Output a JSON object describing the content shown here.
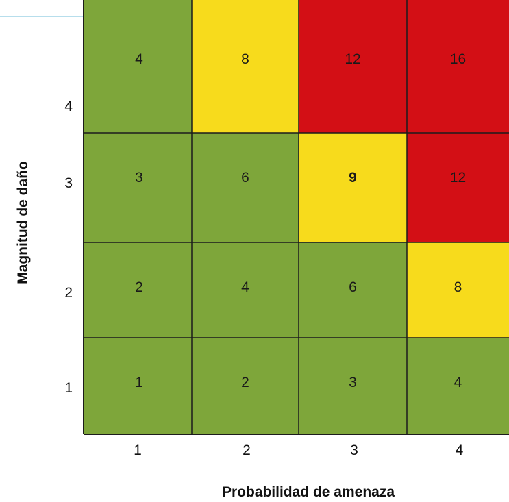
{
  "chart_data": {
    "type": "heatmap",
    "xlabel": "Probabilidad de amenaza",
    "ylabel": "Magnitud de daño",
    "x_categories": [
      "1",
      "2",
      "3",
      "4"
    ],
    "y_categories": [
      "1",
      "2",
      "3",
      "4"
    ],
    "rows": [
      {
        "y": "4",
        "values": [
          4,
          8,
          12,
          16
        ],
        "levels": [
          "low",
          "medium",
          "high",
          "high"
        ]
      },
      {
        "y": "3",
        "values": [
          3,
          6,
          9,
          12
        ],
        "levels": [
          "low",
          "low",
          "medium",
          "high"
        ]
      },
      {
        "y": "2",
        "values": [
          2,
          4,
          6,
          8
        ],
        "levels": [
          "low",
          "low",
          "low",
          "medium"
        ]
      },
      {
        "y": "1",
        "values": [
          1,
          2,
          3,
          4
        ],
        "levels": [
          "low",
          "low",
          "low",
          "low"
        ]
      }
    ],
    "level_colors": {
      "low": "#7ea63a",
      "medium": "#f7db1c",
      "high": "#d30f15"
    }
  }
}
